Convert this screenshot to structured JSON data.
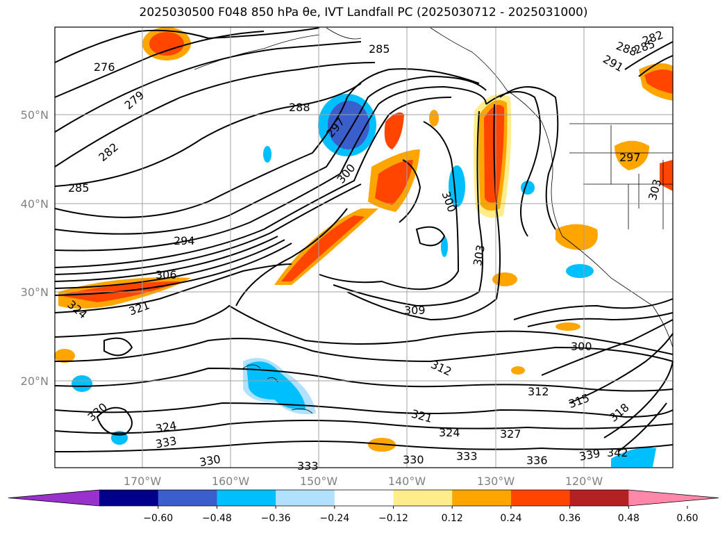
{
  "title": "2025030500 F048 850 hPa θe, IVT Landfall PC (2025030712 - 2025031000)",
  "map": {
    "lat_labels": [
      "50°N",
      "40°N",
      "30°N",
      "20°N"
    ],
    "lon_labels": [
      "170°W",
      "160°W",
      "150°W",
      "140°W",
      "130°W",
      "120°W"
    ],
    "contour_labels": [
      "276",
      "279",
      "282",
      "285",
      "288",
      "285",
      "282",
      "285",
      "288",
      "291",
      "297",
      "294",
      "300",
      "300",
      "303",
      "306",
      "309",
      "312",
      "312",
      "315",
      "318",
      "321",
      "321",
      "324",
      "324",
      "327",
      "330",
      "330",
      "330",
      "333",
      "333",
      "333",
      "336",
      "339",
      "342",
      "324",
      "297",
      "303",
      "300"
    ]
  },
  "colorbar": {
    "ticks": [
      "−0.60",
      "−0.48",
      "−0.36",
      "−0.24",
      "−0.12",
      "0.12",
      "0.24",
      "0.36",
      "0.48",
      "0.60"
    ],
    "colors": [
      "#9932cc",
      "#00008b",
      "#3a5fcd",
      "#00bfff",
      "#b0e2ff",
      "#ffffff",
      "#ffec8b",
      "#ffa500",
      "#ff4500",
      "#b22222",
      "#ff88aa"
    ]
  }
}
